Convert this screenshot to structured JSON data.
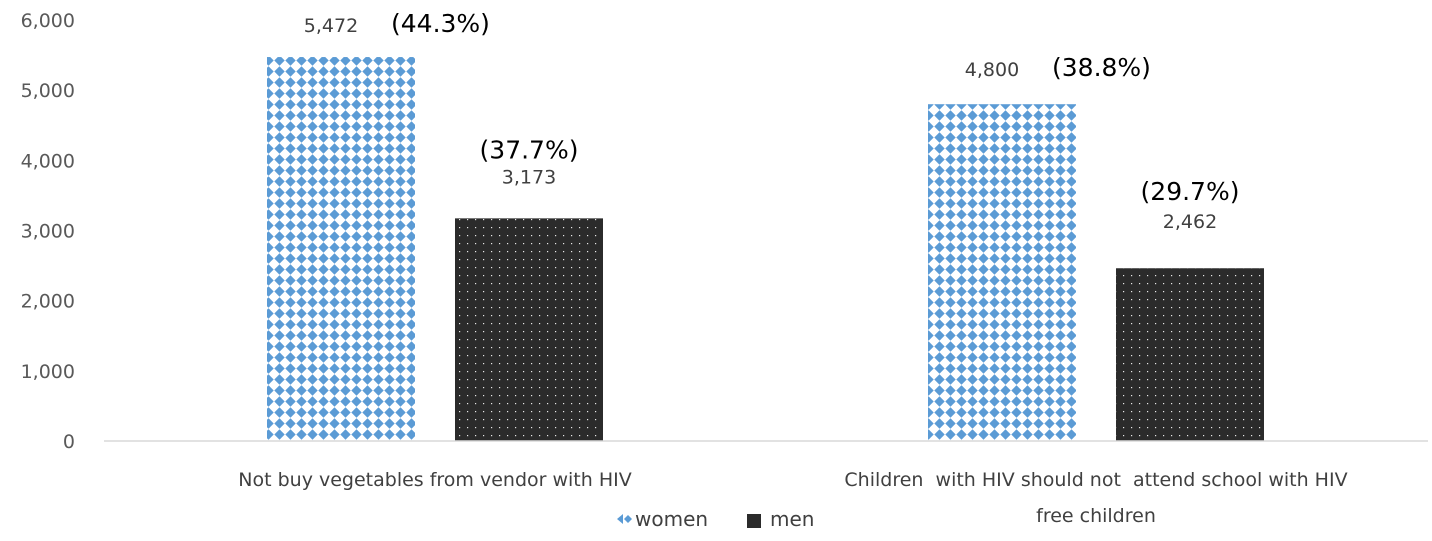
{
  "chart_data": {
    "type": "bar",
    "categories": [
      [
        "Not buy vegetables from vendor with HIV"
      ],
      [
        "Children  with HIV should not  attend school with HIV",
        "free children"
      ]
    ],
    "series": [
      {
        "name": "women",
        "values": [
          5472,
          4800
        ],
        "value_labels": [
          "5,472",
          "4,800"
        ],
        "pct_labels": [
          "(44.3%)",
          "(38.8%)"
        ],
        "color": "#5B9BD5"
      },
      {
        "name": "men",
        "values": [
          3173,
          2462
        ],
        "value_labels": [
          "3,173",
          "2,462"
        ],
        "pct_labels": [
          "(37.7%)",
          "(29.7%)"
        ],
        "color": "#2B2B2B"
      }
    ],
    "ylim": [
      0,
      6000
    ],
    "yticks": [
      0,
      1000,
      2000,
      3000,
      4000,
      5000,
      6000
    ],
    "ytick_labels": [
      "0",
      "1,000",
      "2,000",
      "3,000",
      "4,000",
      "5,000",
      "6,000"
    ],
    "grid": false,
    "legend_position": "bottom"
  }
}
